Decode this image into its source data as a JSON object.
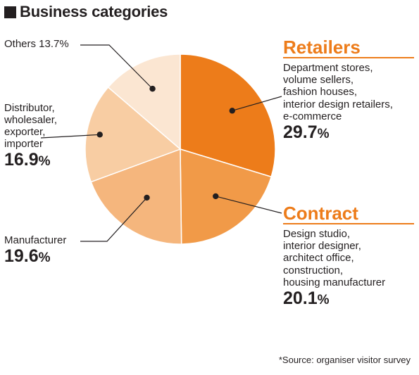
{
  "title": "Business categories",
  "source": "*Source: organiser visitor survey",
  "colors": {
    "accent": "#ed7c1a",
    "text": "#231f20"
  },
  "chart_data": {
    "type": "pie",
    "title": "Business categories",
    "slices": [
      {
        "id": "retailers",
        "label": "Retailers",
        "value": 29.7,
        "description": "Department stores, volume sellers, fashion houses, interior design retailers, e-commerce",
        "color": "#ed7c1a"
      },
      {
        "id": "contract",
        "label": "Contract",
        "value": 20.1,
        "description": "Design studio, interior designer, architect office, construction, housing manufacturer",
        "color": "#f19a48"
      },
      {
        "id": "manufacturer",
        "label": "Manufacturer",
        "value": 19.6,
        "color": "#f5b67d"
      },
      {
        "id": "distributor",
        "label": "Distributor, wholesaler, exporter, importer",
        "value": 16.9,
        "color": "#f8cda3"
      },
      {
        "id": "others",
        "label": "Others",
        "value": 13.7,
        "color": "#fbe6d2"
      }
    ]
  },
  "labels": {
    "retailers": {
      "name": "Retailers",
      "desc": [
        "Department stores,",
        "volume sellers,",
        "fashion houses,",
        "interior design retailers,",
        "e-commerce"
      ],
      "pct": "29.7",
      "unit": "%"
    },
    "contract": {
      "name": "Contract",
      "desc": [
        "Design studio,",
        "interior designer,",
        "architect office,",
        "construction,",
        "housing manufacturer"
      ],
      "pct": "20.1",
      "unit": "%"
    },
    "manufacturer": {
      "name": "Manufacturer",
      "pct": "19.6",
      "unit": "%"
    },
    "distributor": {
      "name_lines": [
        "Distributor,",
        "wholesaler,",
        "exporter,",
        "importer"
      ],
      "pct": "16.9",
      "unit": "%"
    },
    "others": {
      "name": "Others 13.7%"
    }
  }
}
